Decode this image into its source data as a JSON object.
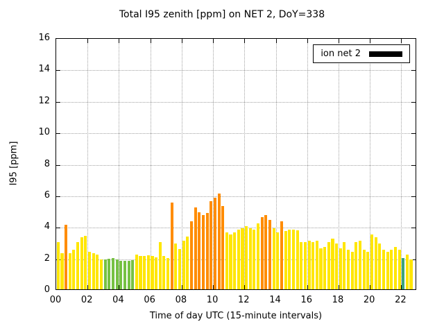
{
  "chart_data": {
    "type": "bar",
    "title": "Total I95 zenith [ppm] on NET 2, DoY=338",
    "xlabel": "Time of day UTC (15-minute intervals)",
    "ylabel": "I95 [ppm]",
    "legend": "ion net 2",
    "xlim": [
      0,
      23
    ],
    "ylim": [
      0,
      16
    ],
    "xtick_values": [
      0,
      2,
      4,
      6,
      8,
      10,
      12,
      14,
      16,
      18,
      20,
      22
    ],
    "xtick_labels": [
      "00",
      "02",
      "04",
      "06",
      "08",
      "10",
      "12",
      "14",
      "16",
      "18",
      "20",
      "22"
    ],
    "ytick_values": [
      0,
      2,
      4,
      6,
      8,
      10,
      12,
      14,
      16
    ],
    "ytick_labels": [
      "0",
      "2",
      "4",
      "6",
      "8",
      "10",
      "12",
      "14",
      "16"
    ],
    "grid": true,
    "legend_position": "top-right",
    "t_start_hours": 0.0,
    "step_hours": 0.25,
    "color_map": {
      "y": "#ffe600",
      "o": "#ff8c00",
      "g": "#76c143",
      "t": "#3aa37c"
    },
    "values": [
      3.0,
      2.3,
      4.1,
      2.3,
      2.5,
      3.0,
      3.3,
      3.4,
      2.4,
      2.3,
      2.2,
      1.9,
      1.9,
      1.95,
      2.0,
      1.9,
      1.8,
      1.8,
      1.8,
      1.85,
      2.2,
      2.1,
      2.1,
      2.15,
      2.1,
      2.05,
      3.0,
      2.1,
      2.0,
      5.5,
      2.9,
      2.55,
      3.1,
      3.35,
      4.3,
      5.2,
      4.9,
      4.7,
      4.85,
      5.6,
      5.8,
      6.1,
      5.3,
      3.6,
      3.5,
      3.6,
      3.8,
      3.9,
      4.0,
      3.9,
      3.8,
      4.2,
      4.6,
      4.7,
      4.4,
      3.9,
      3.6,
      4.3,
      3.7,
      3.8,
      3.8,
      3.75,
      3.0,
      3.0,
      3.1,
      3.0,
      3.1,
      2.6,
      2.7,
      3.0,
      3.2,
      2.9,
      2.6,
      3.0,
      2.5,
      2.4,
      3.0,
      3.1,
      2.5,
      2.4,
      3.5,
      3.3,
      2.9,
      2.5,
      2.4,
      2.5,
      2.7,
      2.5,
      2.0,
      2.2,
      1.9
    ],
    "bar_colors": [
      "y",
      "y",
      "o",
      "y",
      "y",
      "y",
      "y",
      "y",
      "y",
      "y",
      "y",
      "y",
      "g",
      "g",
      "g",
      "g",
      "g",
      "g",
      "g",
      "g",
      "y",
      "y",
      "y",
      "y",
      "y",
      "y",
      "y",
      "y",
      "y",
      "o",
      "y",
      "y",
      "y",
      "y",
      "o",
      "o",
      "o",
      "o",
      "o",
      "o",
      "o",
      "o",
      "o",
      "y",
      "y",
      "y",
      "y",
      "y",
      "y",
      "y",
      "y",
      "y",
      "o",
      "o",
      "o",
      "y",
      "y",
      "o",
      "y",
      "y",
      "y",
      "y",
      "y",
      "y",
      "y",
      "y",
      "y",
      "y",
      "y",
      "y",
      "y",
      "y",
      "y",
      "y",
      "y",
      "y",
      "y",
      "y",
      "y",
      "y",
      "y",
      "y",
      "y",
      "y",
      "y",
      "y",
      "y",
      "y",
      "t",
      "y",
      "y"
    ]
  }
}
